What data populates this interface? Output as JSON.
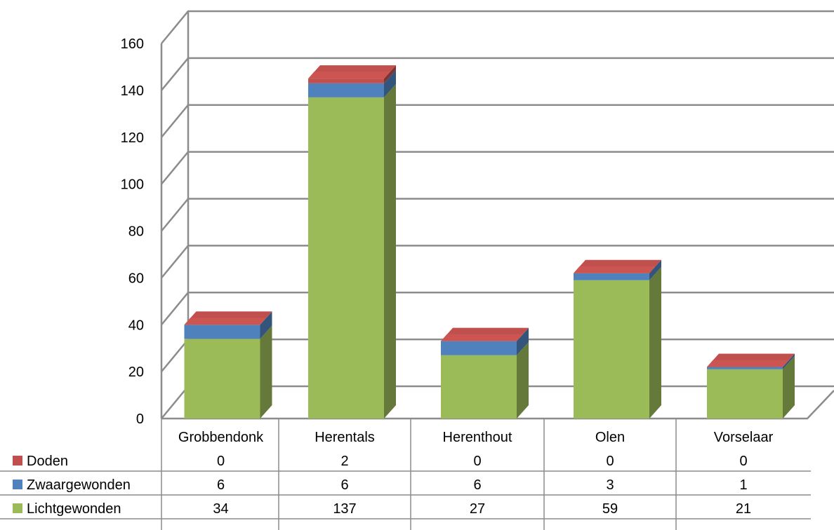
{
  "chart_data": {
    "type": "bar",
    "stacked": true,
    "three_d": true,
    "data_table": true,
    "grid": true,
    "categories": [
      "Grobbendonk",
      "Herentals",
      "Herenthout",
      "Olen",
      "Vorselaar"
    ],
    "series": [
      {
        "name": "Lichtgewonden",
        "values": [
          34,
          137,
          27,
          59,
          21
        ],
        "color": "#9bbb59"
      },
      {
        "name": "Zwaargewonden",
        "values": [
          6,
          6,
          6,
          3,
          1
        ],
        "color": "#4f81bd"
      },
      {
        "name": "Doden",
        "values": [
          0,
          2,
          0,
          0,
          0
        ],
        "color": "#c0504d"
      }
    ],
    "table_row_order": [
      "Doden",
      "Zwaargewonden",
      "Lichtgewonden"
    ],
    "y_ticks": [
      0,
      20,
      40,
      60,
      80,
      100,
      120,
      140,
      160
    ],
    "ylim": [
      0,
      160
    ]
  }
}
